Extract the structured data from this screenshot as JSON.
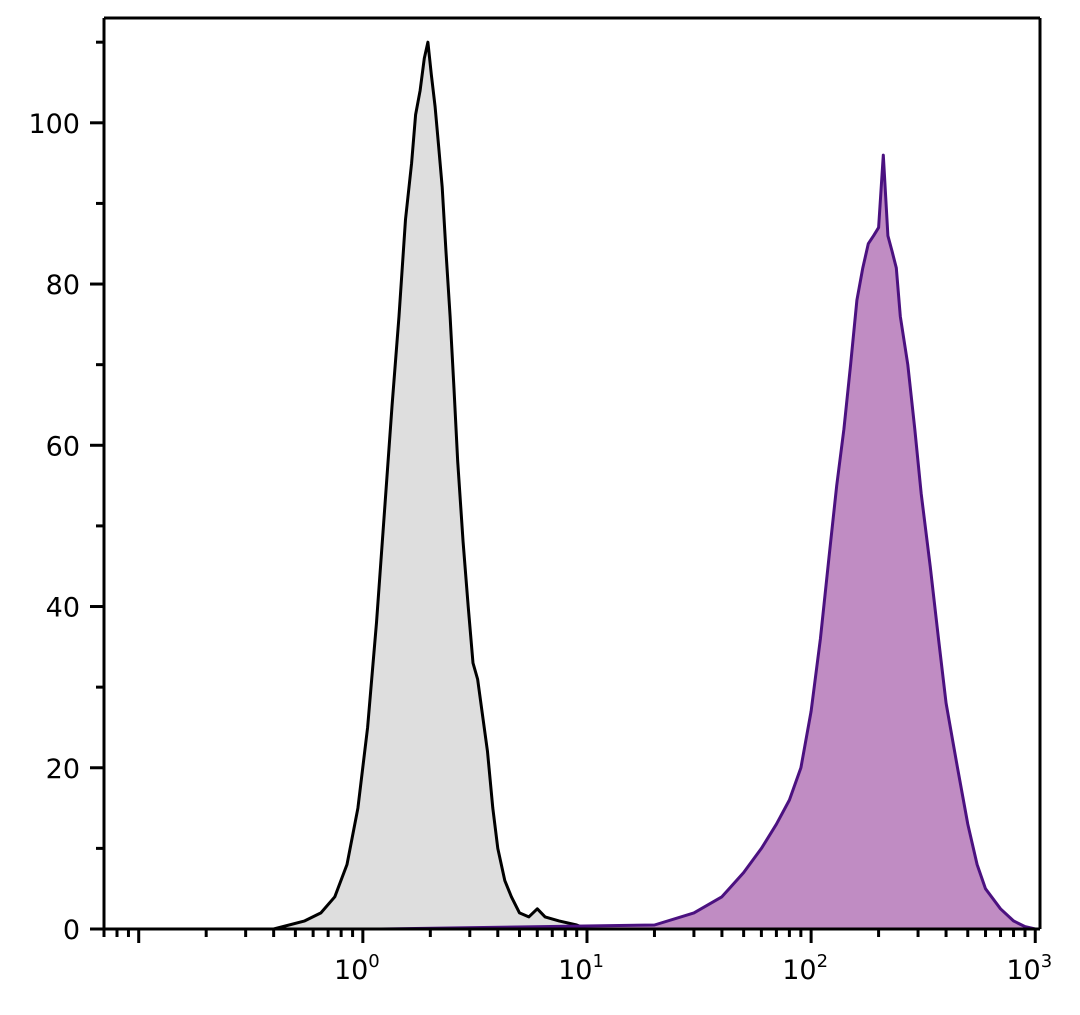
{
  "chart_data": {
    "type": "area",
    "title": "",
    "xlabel": "",
    "ylabel": "",
    "x_scale": "log",
    "xlim": [
      0.07,
      1050
    ],
    "ylim": [
      0,
      113
    ],
    "grid": false,
    "legend": "none",
    "x_ticks": [
      {
        "value": 1,
        "base": "10",
        "exp": "0"
      },
      {
        "value": 10,
        "base": "10",
        "exp": "1"
      },
      {
        "value": 100,
        "base": "10",
        "exp": "2"
      },
      {
        "value": 1000,
        "base": "10",
        "exp": "3"
      }
    ],
    "y_ticks": [
      {
        "value": 0,
        "label": "0"
      },
      {
        "value": 20,
        "label": "20"
      },
      {
        "value": 40,
        "label": "40"
      },
      {
        "value": 60,
        "label": "60"
      },
      {
        "value": 80,
        "label": "80"
      },
      {
        "value": 100,
        "label": "100"
      }
    ],
    "series": [
      {
        "stroke": "#000000",
        "fill": "#dedede",
        "x": [
          0.4,
          0.55,
          0.65,
          0.75,
          0.85,
          0.95,
          1.05,
          1.15,
          1.25,
          1.35,
          1.45,
          1.55,
          1.65,
          1.72,
          1.8,
          1.88,
          1.95,
          2.02,
          2.1,
          2.18,
          2.26,
          2.35,
          2.45,
          2.55,
          2.65,
          2.8,
          2.95,
          3.1,
          3.25,
          3.4,
          3.6,
          3.8,
          4.0,
          4.3,
          4.6,
          5.0,
          5.5,
          6.0,
          6.5,
          7.5,
          9.0,
          10.0
        ],
        "y": [
          0,
          1,
          2,
          4,
          8,
          15,
          25,
          38,
          52,
          65,
          76,
          88,
          95,
          101,
          104,
          108,
          110,
          106,
          102,
          97,
          92,
          84,
          76,
          67,
          58,
          48,
          40,
          33,
          31,
          27,
          22,
          15,
          10,
          6,
          4,
          2,
          1.5,
          2.5,
          1.5,
          1,
          0.5,
          0
        ]
      },
      {
        "stroke": "#4b1180",
        "fill": "#c08cc3",
        "x": [
          1.2,
          20,
          30,
          40,
          50,
          60,
          70,
          80,
          90,
          100,
          110,
          120,
          130,
          140,
          150,
          160,
          170,
          180,
          190,
          200,
          210,
          220,
          230,
          240,
          250,
          270,
          290,
          310,
          340,
          370,
          400,
          450,
          500,
          550,
          600,
          700,
          800,
          900,
          1000
        ],
        "y": [
          0,
          0.5,
          2,
          4,
          7,
          10,
          13,
          16,
          20,
          27,
          36,
          46,
          55,
          62,
          70,
          78,
          82,
          85,
          86,
          87,
          96,
          86,
          84,
          82,
          76,
          70,
          62,
          54,
          45,
          36,
          28,
          20,
          13,
          8,
          5,
          2.5,
          1,
          0.3,
          0
        ]
      }
    ]
  }
}
